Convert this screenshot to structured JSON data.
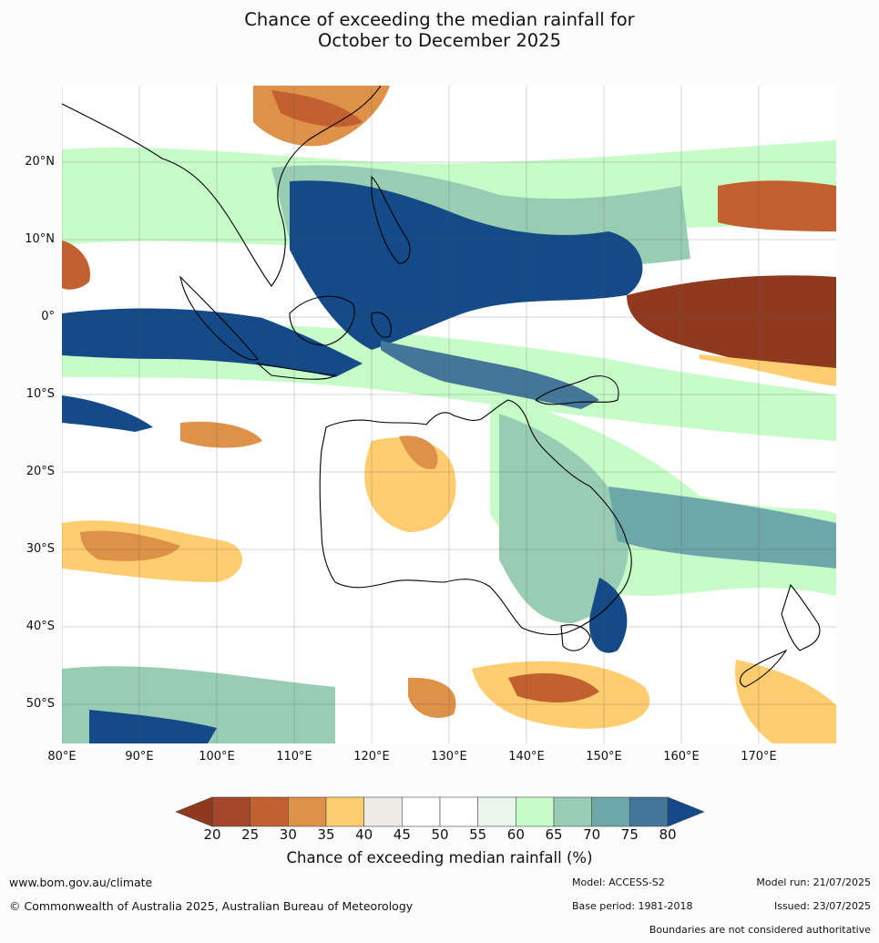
{
  "title_line1": "Chance of exceeding the median rainfall for",
  "title_line2": "October to December 2025",
  "lat_labels": [
    "20°N",
    "10°N",
    "0°",
    "10°S",
    "20°S",
    "30°S",
    "40°S",
    "50°S"
  ],
  "lon_labels": [
    "80°E",
    "90°E",
    "100°E",
    "110°E",
    "120°E",
    "130°E",
    "140°E",
    "150°E",
    "160°E",
    "170°E"
  ],
  "legend": {
    "ticks": [
      "20",
      "25",
      "30",
      "35",
      "40",
      "45",
      "50",
      "55",
      "60",
      "65",
      "70",
      "75",
      "80"
    ],
    "colors": [
      "#a4462a",
      "#c3602f",
      "#de9148",
      "#fdcd6f",
      "#efece8",
      "#ffffff",
      "#ffffff",
      "#e9f6ea",
      "#c7fcc9",
      "#98cdb4",
      "#6ea7a9",
      "#44769a"
    ],
    "under_color": "#8f3a1f",
    "over_color": "#144a88",
    "title": "Chance of exceeding median rainfall (%)"
  },
  "footer": {
    "website": "www.bom.gov.au/climate",
    "copyright": "© Commonwealth of Australia 2025, Australian Bureau of Meteorology",
    "model": "Model: ACCESS-S2",
    "base_period": "Base period: 1981-2018",
    "model_run": "Model run: 21/07/2025",
    "issued": "Issued: 23/07/2025",
    "disclaimer": "Boundaries are not considered authoritative"
  }
}
